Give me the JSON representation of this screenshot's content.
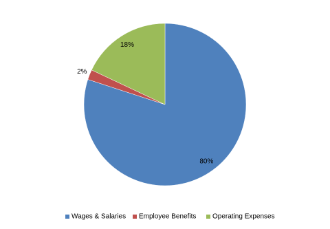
{
  "chart_data": {
    "type": "pie",
    "categories": [
      "Wages & Salaries",
      "Employee Benefits",
      "Operating Expenses"
    ],
    "values": [
      80,
      2,
      18
    ],
    "value_labels": [
      "80%",
      "2%",
      "18%"
    ],
    "colors": [
      "#4f81bd",
      "#c0504d",
      "#9bbb59"
    ],
    "legend": "bottom"
  }
}
